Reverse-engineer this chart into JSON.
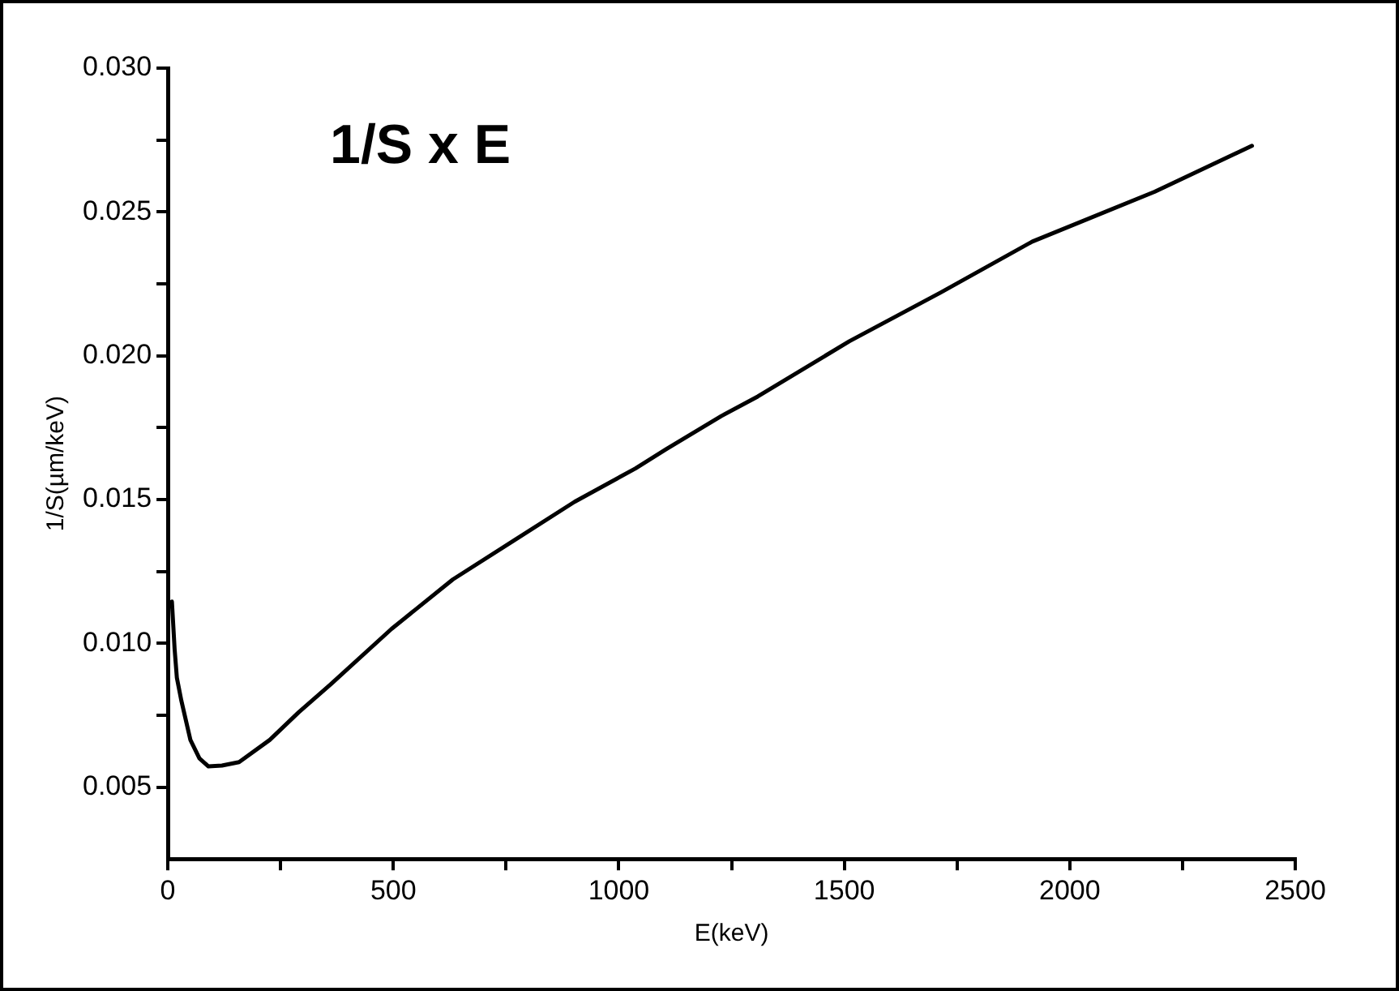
{
  "chart_data": {
    "type": "line",
    "annotations": [
      "1/S x E"
    ],
    "xlabel": "E(keV)",
    "ylabel": "1/S(µm/keV)",
    "x": [
      9,
      15,
      20,
      30,
      50,
      70,
      90,
      120,
      158,
      226,
      290,
      361,
      496,
      632,
      767,
      902,
      1037,
      1105,
      1227,
      1308,
      1511,
      1714,
      1917,
      2188,
      2404
    ],
    "series": [
      {
        "color": "#000000",
        "values": [
          0.01145,
          0.0098,
          0.0088,
          0.008,
          0.00664,
          0.006,
          0.00572,
          0.00575,
          0.00587,
          0.00664,
          0.0076,
          0.00857,
          0.0105,
          0.01222,
          0.01357,
          0.01492,
          0.01608,
          0.01675,
          0.0179,
          0.01858,
          0.0205,
          0.0222,
          0.02397,
          0.0257,
          0.0273
        ]
      }
    ],
    "xlim": [
      0,
      2500
    ],
    "xticks": [
      0,
      {
        "value": 250,
        "label": null
      },
      500,
      {
        "value": 750,
        "label": null
      },
      1000,
      {
        "value": 1250,
        "label": null
      },
      1500,
      {
        "value": 1750,
        "label": null
      },
      2000,
      {
        "value": 2250,
        "label": null
      },
      2500
    ],
    "ylim": [
      0.0025,
      0.03
    ],
    "yticks": [
      {
        "value": 0.005,
        "label": "0.005"
      },
      {
        "value": 0.0075,
        "label": null
      },
      {
        "value": 0.01,
        "label": "0.010"
      },
      {
        "value": 0.0125,
        "label": null
      },
      {
        "value": 0.015,
        "label": "0.015"
      },
      {
        "value": 0.0175,
        "label": null
      },
      {
        "value": 0.02,
        "label": "0.020"
      },
      {
        "value": 0.0225,
        "label": null
      },
      {
        "value": 0.025,
        "label": "0.025"
      },
      {
        "value": 0.0275,
        "label": null
      },
      {
        "value": 0.03,
        "label": "0.030"
      }
    ],
    "grid": false,
    "legend": false,
    "marker": "none",
    "line_style": "solid"
  }
}
